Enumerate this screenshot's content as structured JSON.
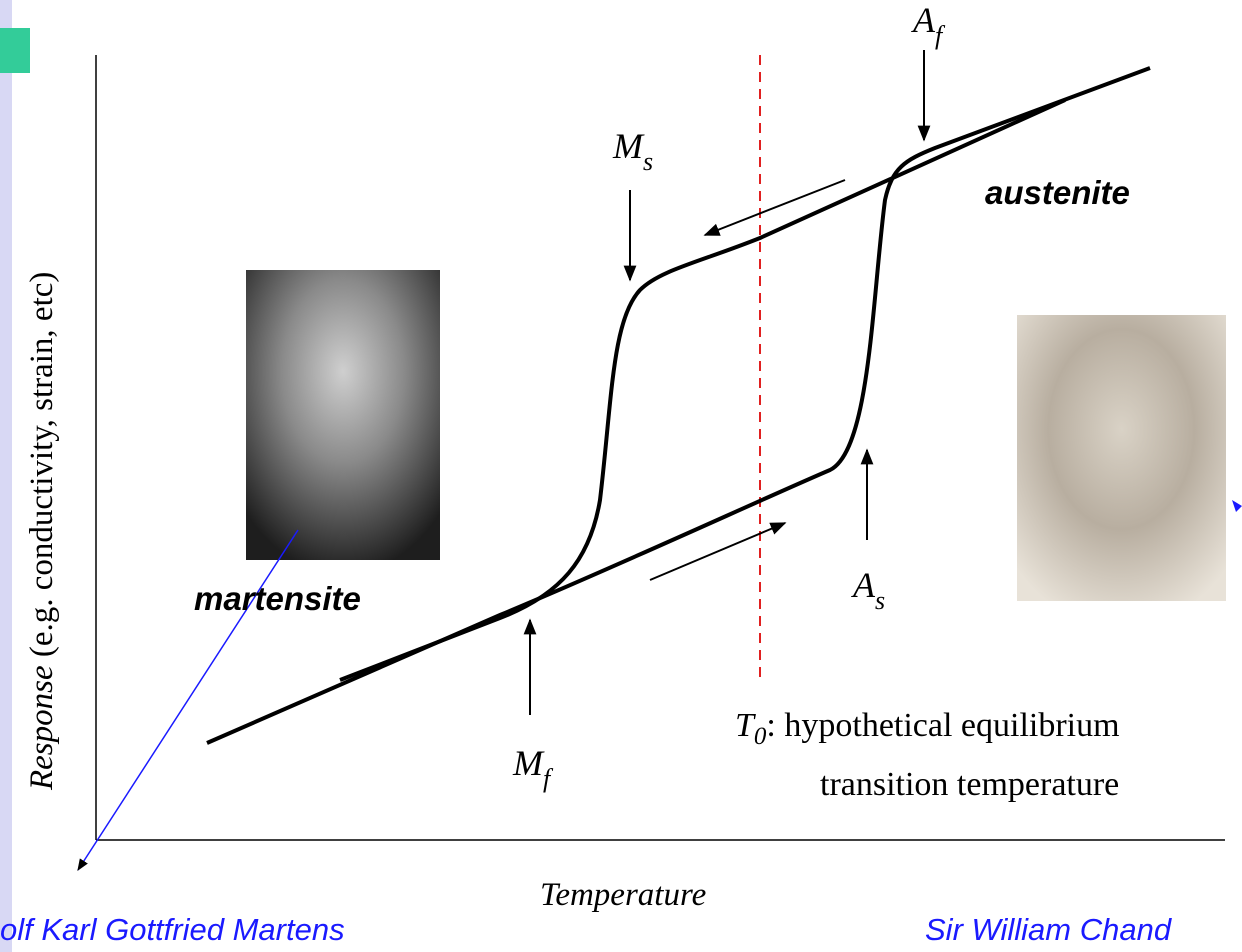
{
  "diagram": {
    "y_axis_label": {
      "italic": "Response",
      "rest": " (e.g. conductivity, strain, etc)"
    },
    "x_axis_label": "Temperature",
    "markers": {
      "A_f": {
        "symbol": "A",
        "subscript": "f"
      },
      "M_s": {
        "symbol": "M",
        "subscript": "s"
      },
      "M_f": {
        "symbol": "M",
        "subscript": "f"
      },
      "A_s": {
        "symbol": "A",
        "subscript": "s"
      }
    },
    "phases": {
      "austenite": "austenite",
      "martensite": "martensite"
    },
    "t0_note": {
      "symbol": "T",
      "subscript": "0",
      "line1": ": hypothetical equilibrium",
      "line2": "transition temperature"
    },
    "people": {
      "left": "olf Karl Gottfried Martens",
      "right": "Sir William Chand"
    }
  }
}
